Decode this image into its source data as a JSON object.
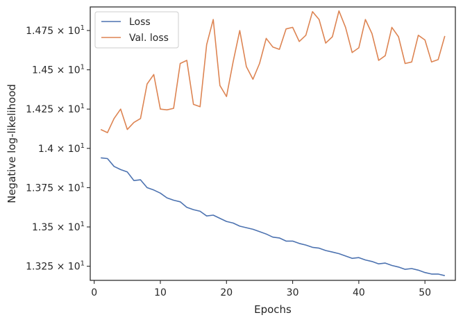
{
  "chart_data": {
    "type": "line",
    "title": "",
    "xlabel": "Epochs",
    "ylabel": "Negative log-likelihood",
    "xlim": [
      -0.6,
      54.6
    ],
    "ylim": [
      13.16,
      14.9
    ],
    "x_ticks": [
      0,
      10,
      20,
      30,
      40,
      50
    ],
    "y_ticks": [
      {
        "value": 13.25,
        "mantissa": "1.325",
        "exponent": "1"
      },
      {
        "value": 13.5,
        "mantissa": "1.35",
        "exponent": "1"
      },
      {
        "value": 13.75,
        "mantissa": "1.375",
        "exponent": "1"
      },
      {
        "value": 14.0,
        "mantissa": "1.4",
        "exponent": "1"
      },
      {
        "value": 14.25,
        "mantissa": "1.425",
        "exponent": "1"
      },
      {
        "value": 14.5,
        "mantissa": "1.45",
        "exponent": "1"
      },
      {
        "value": 14.75,
        "mantissa": "1.475",
        "exponent": "1"
      }
    ],
    "tick_times": "×",
    "tick_base": "10",
    "grid": false,
    "legend_position": "upper-left",
    "x": [
      1,
      2,
      3,
      4,
      5,
      6,
      7,
      8,
      9,
      10,
      11,
      12,
      13,
      14,
      15,
      16,
      17,
      18,
      19,
      20,
      21,
      22,
      23,
      24,
      25,
      26,
      27,
      28,
      29,
      30,
      31,
      32,
      33,
      34,
      35,
      36,
      37,
      38,
      39,
      40,
      41,
      42,
      43,
      44,
      45,
      46,
      47,
      48,
      49,
      50,
      51,
      52,
      53
    ],
    "series": [
      {
        "name": "Loss",
        "color": "#4c72b0",
        "values": [
          13.94,
          13.935,
          13.885,
          13.865,
          13.85,
          13.795,
          13.8,
          13.75,
          13.735,
          13.715,
          13.685,
          13.67,
          13.66,
          13.625,
          13.61,
          13.6,
          13.57,
          13.575,
          13.555,
          13.535,
          13.525,
          13.505,
          13.495,
          13.485,
          13.47,
          13.455,
          13.435,
          13.43,
          13.41,
          13.41,
          13.395,
          13.385,
          13.37,
          13.365,
          13.35,
          13.34,
          13.33,
          13.315,
          13.3,
          13.305,
          13.29,
          13.28,
          13.265,
          13.27,
          13.255,
          13.245,
          13.23,
          13.235,
          13.225,
          13.21,
          13.2,
          13.2,
          13.19
        ]
      },
      {
        "name": "Val. loss",
        "color": "#dd8452",
        "values": [
          14.12,
          14.1,
          14.19,
          14.25,
          14.12,
          14.165,
          14.19,
          14.41,
          14.47,
          14.25,
          14.245,
          14.255,
          14.54,
          14.56,
          14.28,
          14.265,
          14.66,
          14.82,
          14.4,
          14.33,
          14.55,
          14.75,
          14.52,
          14.44,
          14.54,
          14.7,
          14.645,
          14.63,
          14.76,
          14.77,
          14.68,
          14.72,
          14.87,
          14.82,
          14.67,
          14.71,
          14.875,
          14.77,
          14.61,
          14.64,
          14.82,
          14.73,
          14.56,
          14.59,
          14.77,
          14.71,
          14.54,
          14.55,
          14.72,
          14.69,
          14.55,
          14.565,
          14.715
        ]
      }
    ]
  }
}
